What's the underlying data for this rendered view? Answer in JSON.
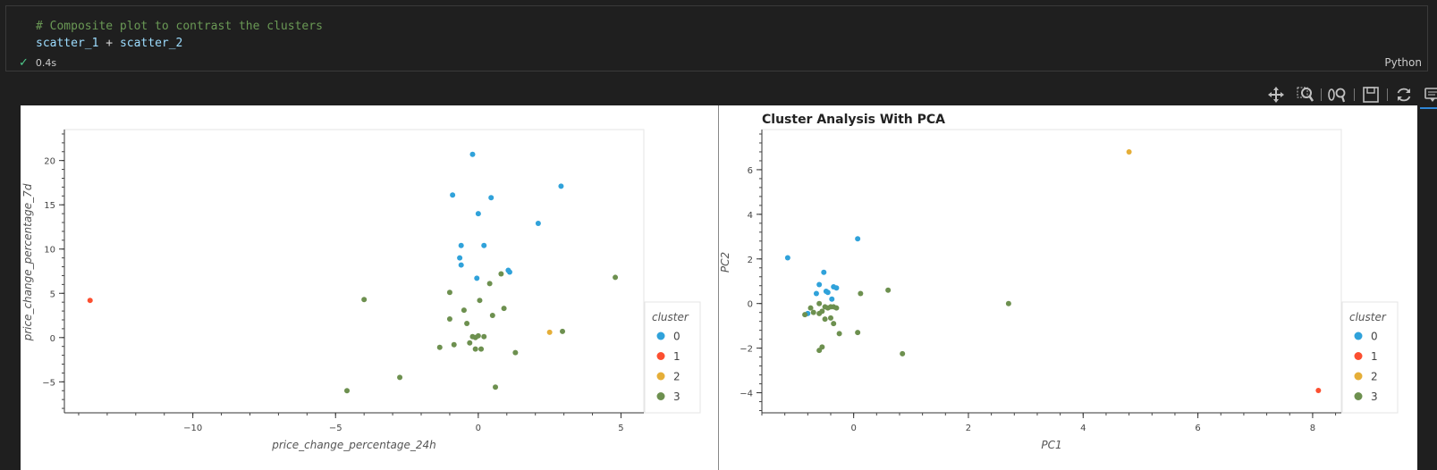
{
  "cell": {
    "code_comment": "# Composite plot to contrast the clusters",
    "code_var1": "scatter_1",
    "code_op": " + ",
    "code_var2": "scatter_2",
    "status_time": "0.4s",
    "language": "Python"
  },
  "toolbar": {
    "tools": [
      "pan-icon",
      "box-zoom-icon",
      "wheel-zoom-icon",
      "save-icon",
      "reset-icon",
      "hover-icon"
    ]
  },
  "colors": {
    "0": "#30a2da",
    "1": "#fc4f30",
    "2": "#e5ae38",
    "3": "#6d904f"
  },
  "chart_data": [
    {
      "type": "scatter",
      "title": "",
      "xlabel": "price_change_percentage_24h",
      "ylabel": "price_change_percentage_7d",
      "xlim": [
        -14.5,
        5.8
      ],
      "ylim": [
        -8.5,
        23.5
      ],
      "xticks": [
        -10,
        -5,
        0,
        5
      ],
      "yticks": [
        -5,
        0,
        5,
        10,
        15,
        20
      ],
      "legend_title": "cluster",
      "legend": [
        "0",
        "1",
        "2",
        "3"
      ],
      "legend_position": "right",
      "series": [
        {
          "name": "0",
          "points": [
            [
              -0.2,
              20.7
            ],
            [
              -0.9,
              16.1
            ],
            [
              0.45,
              15.8
            ],
            [
              2.9,
              17.1
            ],
            [
              0.0,
              14.0
            ],
            [
              2.1,
              12.9
            ],
            [
              -0.6,
              10.4
            ],
            [
              0.2,
              10.4
            ],
            [
              -0.65,
              9.0
            ],
            [
              -0.6,
              8.2
            ],
            [
              1.05,
              7.6
            ],
            [
              1.1,
              7.4
            ],
            [
              -0.05,
              6.7
            ]
          ]
        },
        {
          "name": "1",
          "points": [
            [
              -13.6,
              4.2
            ]
          ]
        },
        {
          "name": "2",
          "points": [
            [
              2.5,
              0.6
            ]
          ]
        },
        {
          "name": "3",
          "points": [
            [
              4.8,
              6.8
            ],
            [
              -4.0,
              4.3
            ],
            [
              -1.0,
              5.1
            ],
            [
              0.8,
              7.2
            ],
            [
              0.4,
              6.1
            ],
            [
              0.05,
              4.2
            ],
            [
              0.9,
              3.3
            ],
            [
              -0.5,
              3.1
            ],
            [
              0.5,
              2.5
            ],
            [
              -1.0,
              2.1
            ],
            [
              -0.4,
              1.6
            ],
            [
              2.95,
              0.7
            ],
            [
              -0.2,
              0.1
            ],
            [
              0.0,
              0.2
            ],
            [
              -0.1,
              0.0
            ],
            [
              0.2,
              0.1
            ],
            [
              -0.85,
              -0.8
            ],
            [
              -0.3,
              -0.6
            ],
            [
              -1.35,
              -1.1
            ],
            [
              -0.1,
              -1.3
            ],
            [
              0.1,
              -1.3
            ],
            [
              1.3,
              -1.7
            ],
            [
              -2.75,
              -4.5
            ],
            [
              -4.6,
              -6.0
            ],
            [
              0.6,
              -5.6
            ]
          ]
        }
      ]
    },
    {
      "type": "scatter",
      "title": "Cluster Analysis With PCA",
      "xlabel": "PC1",
      "ylabel": "PC2",
      "xlim": [
        -1.6,
        8.5
      ],
      "ylim": [
        -4.9,
        7.8
      ],
      "xticks": [
        0,
        2,
        4,
        6,
        8
      ],
      "yticks": [
        -4,
        -2,
        0,
        2,
        4,
        6
      ],
      "legend_title": "cluster",
      "legend": [
        "0",
        "1",
        "2",
        "3"
      ],
      "legend_position": "right",
      "series": [
        {
          "name": "0",
          "points": [
            [
              -1.15,
              2.05
            ],
            [
              0.07,
              2.9
            ],
            [
              -0.52,
              1.4
            ],
            [
              -0.6,
              0.85
            ],
            [
              -0.35,
              0.75
            ],
            [
              -0.3,
              0.7
            ],
            [
              -0.65,
              0.45
            ],
            [
              -0.48,
              0.55
            ],
            [
              -0.45,
              0.5
            ],
            [
              -0.38,
              0.2
            ],
            [
              -0.8,
              -0.45
            ]
          ]
        },
        {
          "name": "1",
          "points": [
            [
              8.1,
              -3.9
            ]
          ]
        },
        {
          "name": "2",
          "points": [
            [
              4.8,
              6.8
            ]
          ]
        },
        {
          "name": "3",
          "points": [
            [
              2.7,
              0.0
            ],
            [
              0.6,
              0.6
            ],
            [
              0.12,
              0.45
            ],
            [
              -0.6,
              0.0
            ],
            [
              -0.5,
              -0.15
            ],
            [
              -0.45,
              -0.2
            ],
            [
              -0.4,
              -0.15
            ],
            [
              -0.35,
              -0.15
            ],
            [
              -0.3,
              -0.2
            ],
            [
              -0.75,
              -0.2
            ],
            [
              -0.7,
              -0.4
            ],
            [
              -0.6,
              -0.45
            ],
            [
              -0.55,
              -0.35
            ],
            [
              -0.5,
              -0.7
            ],
            [
              -0.4,
              -0.65
            ],
            [
              -0.35,
              -0.9
            ],
            [
              -0.25,
              -1.35
            ],
            [
              0.07,
              -1.3
            ],
            [
              -0.6,
              -2.1
            ],
            [
              -0.55,
              -1.95
            ],
            [
              0.85,
              -2.25
            ],
            [
              -0.85,
              -0.5
            ]
          ]
        }
      ]
    }
  ]
}
